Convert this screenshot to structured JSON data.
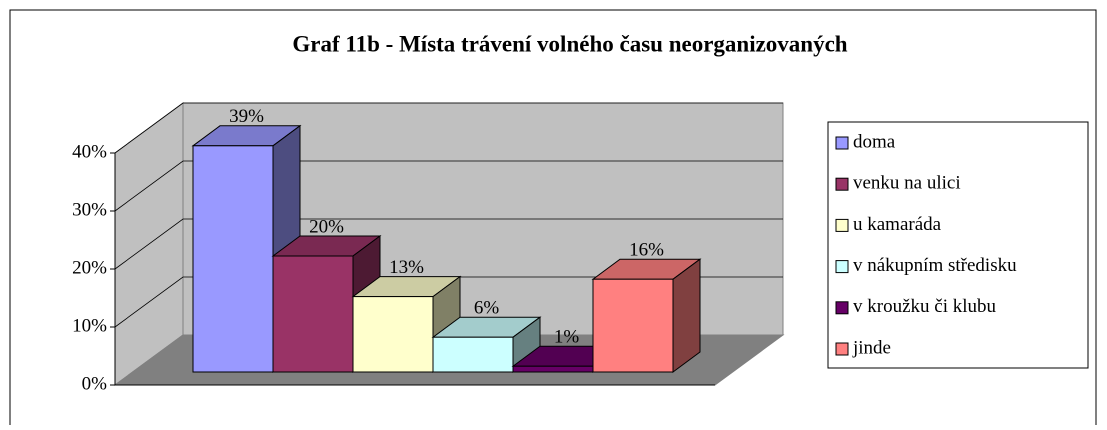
{
  "chart_data": {
    "type": "bar3d",
    "title": "Graf 11b - Místa trávení volného času neorganizovaných",
    "ylim": [
      0,
      40
    ],
    "yticks": [
      {
        "value": 0,
        "label": "0%"
      },
      {
        "value": 10,
        "label": "10%"
      },
      {
        "value": 20,
        "label": "20%"
      },
      {
        "value": 30,
        "label": "30%"
      },
      {
        "value": 40,
        "label": "40%"
      }
    ],
    "grid": true,
    "legend": "right",
    "series": [
      {
        "name": "doma",
        "color": "#9999ff",
        "values": [
          39
        ],
        "value_labels": [
          "39%"
        ]
      },
      {
        "name": "venku na ulici",
        "color": "#993366",
        "values": [
          20
        ],
        "value_labels": [
          "20%"
        ]
      },
      {
        "name": "u kamaráda",
        "color": "#ffffcc",
        "values": [
          13
        ],
        "value_labels": [
          "13%"
        ]
      },
      {
        "name": "v nákupním středisku",
        "color": "#ccffff",
        "values": [
          6
        ],
        "value_labels": [
          "6%"
        ]
      },
      {
        "name": "v kroužku či klubu",
        "color": "#660066",
        "values": [
          1
        ],
        "value_labels": [
          "1%"
        ]
      },
      {
        "name": "jinde",
        "color": "#ff8080",
        "values": [
          16
        ],
        "value_labels": [
          "16%"
        ]
      }
    ]
  }
}
